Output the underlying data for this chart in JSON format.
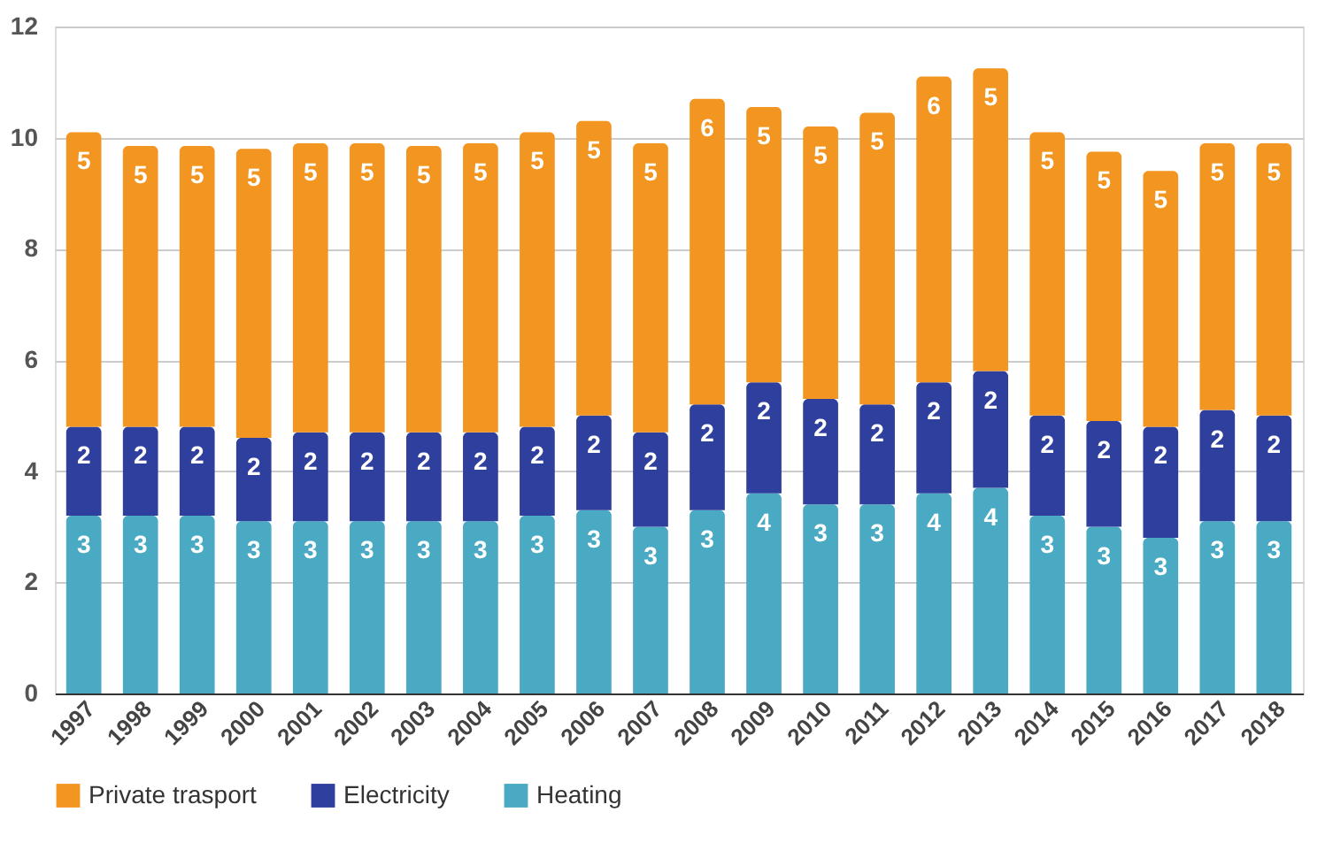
{
  "chart_data": {
    "type": "bar",
    "stacked": true,
    "categories": [
      "1997",
      "1998",
      "1999",
      "2000",
      "2001",
      "2002",
      "2003",
      "2004",
      "2005",
      "2006",
      "2007",
      "2008",
      "2009",
      "2010",
      "2011",
      "2012",
      "2013",
      "2014",
      "2015",
      "2016",
      "2017",
      "2018"
    ],
    "series": [
      {
        "name": "Heating",
        "color": "#4aaac4",
        "values": [
          3.2,
          3.2,
          3.2,
          3.1,
          3.1,
          3.1,
          3.1,
          3.1,
          3.2,
          3.3,
          3.0,
          3.3,
          3.6,
          3.4,
          3.4,
          3.6,
          3.7,
          3.2,
          3.0,
          2.8,
          3.1,
          3.1
        ],
        "value_labels": [
          "3",
          "3",
          "3",
          "3",
          "3",
          "3",
          "3",
          "3",
          "3",
          "3",
          "3",
          "3",
          "4",
          "3",
          "3",
          "4",
          "4",
          "3",
          "3",
          "3",
          "3",
          "3"
        ]
      },
      {
        "name": "Electricity",
        "color": "#2e3f9e",
        "values": [
          1.6,
          1.6,
          1.6,
          1.5,
          1.6,
          1.6,
          1.6,
          1.6,
          1.6,
          1.7,
          1.7,
          1.9,
          2.0,
          1.9,
          1.8,
          2.0,
          2.1,
          1.8,
          1.9,
          2.0,
          2.0,
          1.9
        ],
        "value_labels": [
          "2",
          "2",
          "2",
          "2",
          "2",
          "2",
          "2",
          "2",
          "2",
          "2",
          "2",
          "2",
          "2",
          "2",
          "2",
          "2",
          "2",
          "2",
          "2",
          "2",
          "2",
          "2"
        ]
      },
      {
        "name": "Private trasport",
        "color": "#f39621",
        "values": [
          5.3,
          5.05,
          5.05,
          5.2,
          5.2,
          5.2,
          5.15,
          5.2,
          5.3,
          5.3,
          5.2,
          5.5,
          4.95,
          4.9,
          5.25,
          5.5,
          5.45,
          5.1,
          4.85,
          4.6,
          4.8,
          4.9
        ],
        "value_labels": [
          "5",
          "5",
          "5",
          "5",
          "5",
          "5",
          "5",
          "5",
          "5",
          "5",
          "5",
          "6",
          "5",
          "5",
          "5",
          "6",
          "5",
          "5",
          "5",
          "5",
          "5",
          "5"
        ]
      }
    ],
    "ylim": [
      0,
      12
    ],
    "yticks": [
      0,
      2,
      4,
      6,
      8,
      10,
      12
    ],
    "grid": "y",
    "legend": "bottom"
  }
}
